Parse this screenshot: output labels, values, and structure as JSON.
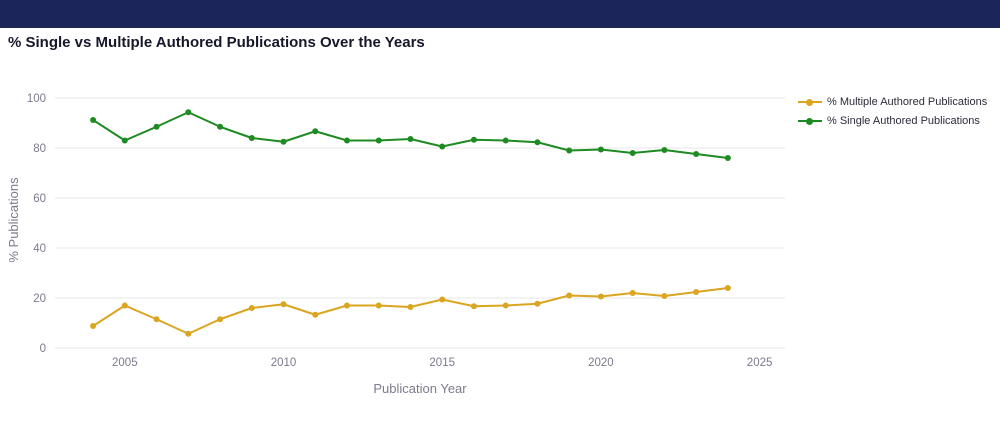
{
  "chart_data": {
    "type": "line",
    "title": "% Single vs Multiple Authored Publications Over the Years",
    "xlabel": "Publication Year",
    "ylabel": "% Publications",
    "x": [
      2004,
      2005,
      2006,
      2007,
      2008,
      2009,
      2010,
      2011,
      2012,
      2013,
      2014,
      2015,
      2016,
      2017,
      2018,
      2019,
      2020,
      2021,
      2022,
      2023,
      2024
    ],
    "series": [
      {
        "name": "% Multiple Authored Publications",
        "color": "#DAA520",
        "values": [
          8.8,
          17.0,
          11.5,
          5.7,
          11.5,
          16.0,
          17.5,
          13.3,
          17.0,
          17.0,
          16.4,
          19.4,
          16.7,
          17.0,
          17.7,
          21.0,
          20.6,
          22.0,
          20.8,
          22.4,
          24.0
        ]
      },
      {
        "name": "% Single Authored Publications",
        "color": "#1E8B22",
        "values": [
          91.2,
          83.0,
          88.5,
          94.3,
          88.5,
          84.0,
          82.5,
          86.7,
          83.0,
          83.0,
          83.6,
          80.6,
          83.3,
          83.0,
          82.3,
          79.0,
          79.4,
          78.0,
          79.2,
          77.6,
          76.0
        ]
      }
    ],
    "xlim": [
      2002.8,
      2025.8
    ],
    "ylim": [
      0,
      100
    ],
    "xticks": [
      2005,
      2010,
      2015,
      2020,
      2025
    ],
    "yticks": [
      0,
      20,
      40,
      60,
      80,
      100
    ],
    "grid": true,
    "legend_position": "right",
    "background": "#ffffff",
    "header_bar_color": "#1b2559",
    "gridline_color": "#e7e7e7",
    "tick_label_color": "#7b7b8d"
  }
}
